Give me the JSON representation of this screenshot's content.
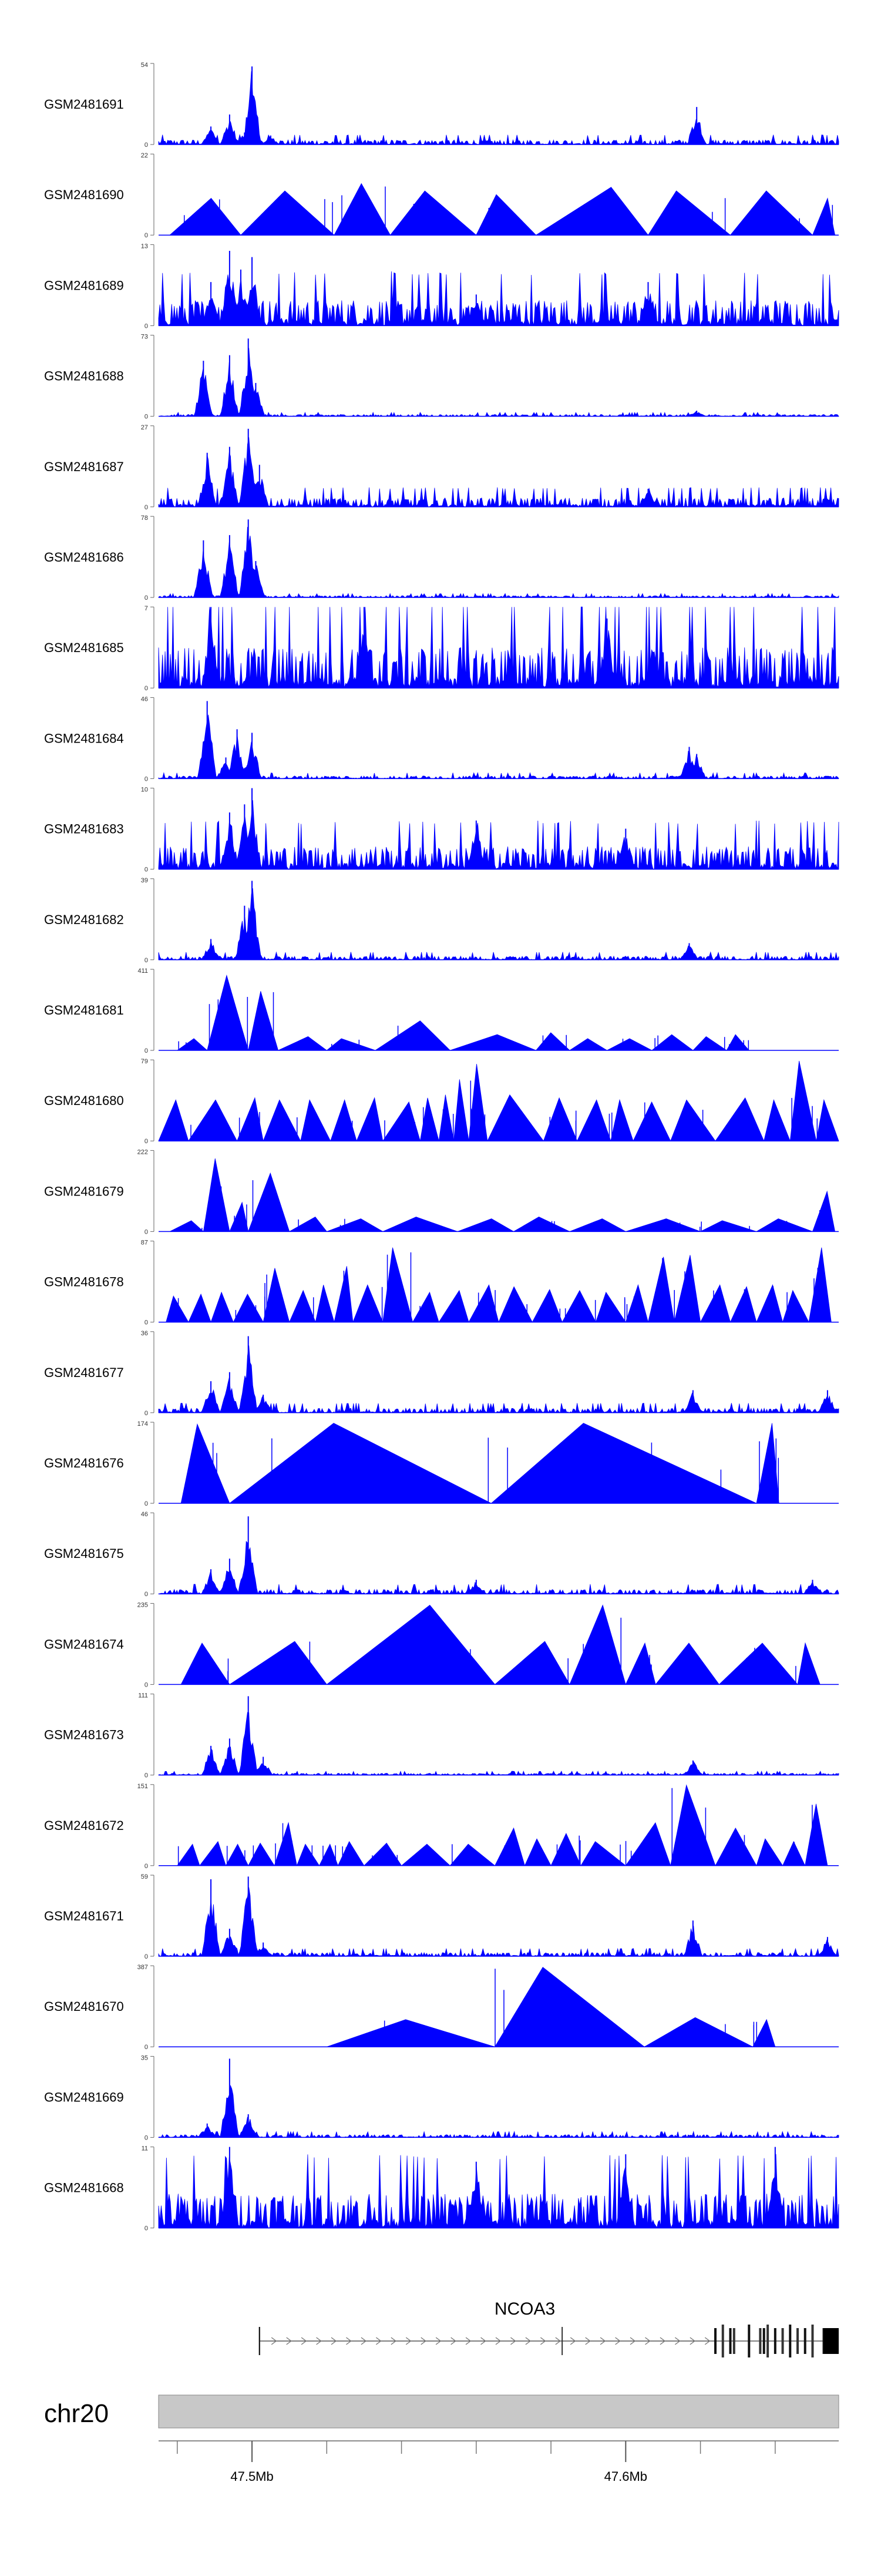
{
  "chart_data": {
    "type": "area",
    "title": "",
    "xlabel": "",
    "ylabel": "",
    "chromosome": "chr20",
    "xlim_mb": [
      47.475,
      47.657
    ],
    "x_ticks": [
      {
        "pos": 47.5,
        "label": "47.5Mb"
      },
      {
        "pos": 47.6,
        "label": "47.6Mb"
      }
    ],
    "x_minor_ticks": [
      47.48,
      47.52,
      47.54,
      47.56,
      47.58,
      47.62,
      47.64
    ],
    "tracks": [
      {
        "name": "GSM2481691",
        "ymax": 54,
        "style": "dense",
        "noise": 0.05,
        "peaks": [
          [
            47.489,
            12
          ],
          [
            47.494,
            20
          ],
          [
            47.5,
            52
          ],
          [
            47.498,
            8
          ],
          [
            47.619,
            25
          ],
          [
            47.505,
            6
          ]
        ],
        "color": "#0000ff"
      },
      {
        "name": "GSM2481690",
        "ymax": 22,
        "style": "sparse",
        "starts": [
          47.478,
          47.497,
          47.522,
          47.537,
          47.56,
          47.576,
          47.606,
          47.628,
          47.65
        ],
        "vals": [
          10,
          12,
          14,
          12,
          11,
          13,
          12,
          12,
          10
        ],
        "color": "#0000ff"
      },
      {
        "name": "GSM2481689",
        "ymax": 13,
        "style": "dense",
        "noise": 0.28,
        "peaks": [
          [
            47.494,
            12
          ],
          [
            47.5,
            11
          ],
          [
            47.497,
            9
          ],
          [
            47.489,
            7
          ],
          [
            47.56,
            5
          ],
          [
            47.606,
            7
          ]
        ],
        "color": "#0000ff"
      },
      {
        "name": "GSM2481688",
        "ymax": 73,
        "style": "dense",
        "noise": 0.02,
        "peaks": [
          [
            47.487,
            50
          ],
          [
            47.494,
            55
          ],
          [
            47.499,
            70
          ],
          [
            47.501,
            30
          ],
          [
            47.619,
            5
          ]
        ],
        "color": "#0000ff"
      },
      {
        "name": "GSM2481687",
        "ymax": 27,
        "style": "dense",
        "noise": 0.1,
        "peaks": [
          [
            47.488,
            18
          ],
          [
            47.494,
            20
          ],
          [
            47.499,
            26
          ],
          [
            47.502,
            14
          ],
          [
            47.606,
            6
          ]
        ],
        "color": "#0000ff"
      },
      {
        "name": "GSM2481686",
        "ymax": 78,
        "style": "dense",
        "noise": 0.02,
        "peaks": [
          [
            47.487,
            55
          ],
          [
            47.494,
            60
          ],
          [
            47.499,
            75
          ],
          [
            47.501,
            35
          ]
        ],
        "color": "#0000ff"
      },
      {
        "name": "GSM2481685",
        "ymax": 7,
        "style": "dense",
        "noise": 0.45,
        "peaks": [
          [
            47.489,
            7
          ],
          [
            47.53,
            7
          ],
          [
            47.595,
            6
          ]
        ],
        "color": "#0000ff"
      },
      {
        "name": "GSM2481684",
        "ymax": 46,
        "style": "dense",
        "noise": 0.03,
        "peaks": [
          [
            47.488,
            44
          ],
          [
            47.493,
            12
          ],
          [
            47.496,
            28
          ],
          [
            47.5,
            26
          ],
          [
            47.617,
            18
          ],
          [
            47.619,
            14
          ]
        ],
        "color": "#0000ff"
      },
      {
        "name": "GSM2481683",
        "ymax": 10,
        "style": "dense",
        "noise": 0.25,
        "peaks": [
          [
            47.5,
            10
          ],
          [
            47.494,
            7
          ],
          [
            47.498,
            8
          ],
          [
            47.56,
            6
          ],
          [
            47.6,
            5
          ]
        ],
        "color": "#0000ff"
      },
      {
        "name": "GSM2481682",
        "ymax": 39,
        "style": "dense",
        "noise": 0.04,
        "peaks": [
          [
            47.489,
            10
          ],
          [
            47.498,
            26
          ],
          [
            47.5,
            38
          ],
          [
            47.617,
            8
          ]
        ],
        "color": "#0000ff"
      },
      {
        "name": "GSM2481681",
        "ymax": 411,
        "style": "sparse",
        "starts": [
          47.48,
          47.488,
          47.499,
          47.507,
          47.52,
          47.533,
          47.553,
          47.576,
          47.585,
          47.595,
          47.607,
          47.618,
          47.627
        ],
        "vals": [
          60,
          380,
          300,
          70,
          60,
          150,
          80,
          90,
          60,
          60,
          80,
          70,
          80
        ],
        "color": "#0000ff"
      },
      {
        "name": "GSM2481680",
        "ymax": 79,
        "style": "sparse",
        "starts": [
          47.475,
          47.483,
          47.496,
          47.503,
          47.513,
          47.521,
          47.528,
          47.535,
          47.545,
          47.55,
          47.554,
          47.558,
          47.563,
          47.578,
          47.587,
          47.596,
          47.602,
          47.612,
          47.624,
          47.637,
          47.644,
          47.651
        ],
        "vals": [
          40,
          40,
          42,
          40,
          40,
          40,
          42,
          38,
          42,
          45,
          60,
          75,
          45,
          42,
          40,
          40,
          38,
          40,
          42,
          40,
          78,
          40
        ],
        "color": "#0000ff"
      },
      {
        "name": "GSM2481679",
        "ymax": 222,
        "style": "sparse",
        "starts": [
          47.478,
          47.487,
          47.494,
          47.499,
          47.51,
          47.52,
          47.535,
          47.555,
          47.57,
          47.585,
          47.6,
          47.62,
          47.635,
          47.65
        ],
        "vals": [
          30,
          200,
          80,
          160,
          40,
          35,
          40,
          35,
          40,
          35,
          35,
          30,
          35,
          110
        ],
        "color": "#0000ff"
      },
      {
        "name": "GSM2481678",
        "ymax": 87,
        "style": "sparse",
        "starts": [
          47.477,
          47.483,
          47.489,
          47.495,
          47.503,
          47.51,
          47.517,
          47.522,
          47.527,
          47.535,
          47.543,
          47.55,
          47.558,
          47.566,
          47.575,
          47.583,
          47.592,
          47.6,
          47.606,
          47.613,
          47.62,
          47.628,
          47.635,
          47.642,
          47.649
        ],
        "vals": [
          28,
          30,
          32,
          30,
          58,
          34,
          40,
          60,
          40,
          80,
          32,
          34,
          40,
          38,
          35,
          34,
          32,
          40,
          70,
          72,
          40,
          38,
          40,
          34,
          80
        ],
        "color": "#0000ff"
      },
      {
        "name": "GSM2481677",
        "ymax": 36,
        "style": "dense",
        "noise": 0.05,
        "peaks": [
          [
            47.489,
            14
          ],
          [
            47.494,
            18
          ],
          [
            47.499,
            34
          ],
          [
            47.503,
            8
          ],
          [
            47.618,
            10
          ],
          [
            47.654,
            10
          ]
        ],
        "color": "#0000ff"
      },
      {
        "name": "GSM2481676",
        "ymax": 174,
        "style": "sparse",
        "starts": [
          47.481,
          47.494,
          47.564,
          47.635
        ],
        "vals": [
          170,
          172,
          172,
          172
        ],
        "color": "#0000ff"
      },
      {
        "name": "GSM2481675",
        "ymax": 46,
        "style": "dense",
        "noise": 0.05,
        "peaks": [
          [
            47.489,
            14
          ],
          [
            47.494,
            20
          ],
          [
            47.499,
            44
          ],
          [
            47.56,
            8
          ],
          [
            47.65,
            8
          ]
        ],
        "color": "#0000ff"
      },
      {
        "name": "GSM2481674",
        "ymax": 235,
        "style": "sparse",
        "starts": [
          47.481,
          47.494,
          47.52,
          47.565,
          47.585,
          47.6,
          47.608,
          47.625,
          47.646
        ],
        "vals": [
          120,
          125,
          230,
          125,
          230,
          120,
          120,
          120,
          120
        ],
        "color": "#0000ff"
      },
      {
        "name": "GSM2481673",
        "ymax": 111,
        "style": "dense",
        "noise": 0.02,
        "peaks": [
          [
            47.489,
            40
          ],
          [
            47.494,
            50
          ],
          [
            47.499,
            108
          ],
          [
            47.503,
            25
          ],
          [
            47.618,
            20
          ]
        ],
        "color": "#0000ff"
      },
      {
        "name": "GSM2481672",
        "ymax": 151,
        "style": "sparse",
        "starts": [
          47.48,
          47.486,
          47.493,
          47.499,
          47.506,
          47.512,
          47.518,
          47.523,
          47.53,
          47.54,
          47.553,
          47.565,
          47.573,
          47.58,
          47.588,
          47.6,
          47.612,
          47.624,
          47.635,
          47.642,
          47.648
        ],
        "vals": [
          40,
          45,
          40,
          42,
          80,
          40,
          40,
          45,
          42,
          40,
          40,
          70,
          50,
          60,
          45,
          80,
          150,
          70,
          50,
          45,
          115
        ],
        "color": "#0000ff"
      },
      {
        "name": "GSM2481671",
        "ymax": 59,
        "style": "dense",
        "noise": 0.04,
        "peaks": [
          [
            47.489,
            56
          ],
          [
            47.494,
            20
          ],
          [
            47.499,
            58
          ],
          [
            47.503,
            10
          ],
          [
            47.618,
            26
          ],
          [
            47.654,
            14
          ]
        ],
        "color": "#0000ff"
      },
      {
        "name": "GSM2481670",
        "ymax": 387,
        "style": "sparse",
        "starts": [
          47.52,
          47.565,
          47.605,
          47.634
        ],
        "vals": [
          130,
          380,
          140,
          130
        ],
        "color": "#0000ff"
      },
      {
        "name": "GSM2481669",
        "ymax": 35,
        "style": "dense",
        "noise": 0.03,
        "peaks": [
          [
            47.488,
            6
          ],
          [
            47.494,
            34
          ],
          [
            47.499,
            10
          ]
        ],
        "color": "#0000ff"
      },
      {
        "name": "GSM2481668",
        "ymax": 11,
        "style": "dense",
        "noise": 0.38,
        "peaks": [
          [
            47.494,
            11
          ],
          [
            47.56,
            9
          ],
          [
            47.6,
            10
          ],
          [
            47.64,
            11
          ]
        ],
        "color": "#0000ff"
      }
    ],
    "gene": {
      "name": "NCOA3",
      "start": 47.502,
      "end": 47.657,
      "strand": "+",
      "exons": [
        47.502,
        47.583,
        47.624,
        47.626,
        47.628,
        47.629,
        47.633,
        47.636,
        47.637,
        47.638,
        47.64,
        47.642,
        47.644,
        47.646,
        47.648,
        47.65,
        47.653
      ],
      "thick_end": [
        47.653,
        47.657
      ]
    }
  }
}
